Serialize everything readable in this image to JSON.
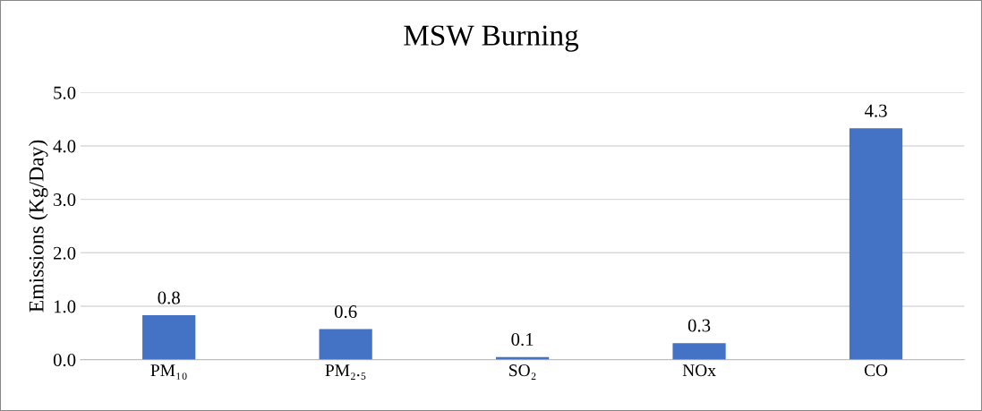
{
  "chart_data": {
    "type": "bar",
    "title": "MSW Burning",
    "ylabel": "Emissions (Kg/Day)",
    "categories": [
      "PM₁₀",
      "PM₂.₅",
      "SO₂",
      "NOx",
      "CO"
    ],
    "values": [
      0.83,
      0.57,
      0.05,
      0.31,
      4.33
    ],
    "value_labels": [
      "0.8",
      "0.6",
      "0.1",
      "0.3",
      "4.3"
    ],
    "color": "#4472c4",
    "ylim": [
      0,
      5
    ],
    "yticks": [
      {
        "value": 0,
        "label": "0.0"
      },
      {
        "value": 1,
        "label": "1.0"
      },
      {
        "value": 2,
        "label": "2.0"
      },
      {
        "value": 3,
        "label": "3.0"
      },
      {
        "value": 4,
        "label": "4.0"
      },
      {
        "value": 5,
        "label": "5.0"
      }
    ],
    "grid": "y",
    "legend": false
  }
}
